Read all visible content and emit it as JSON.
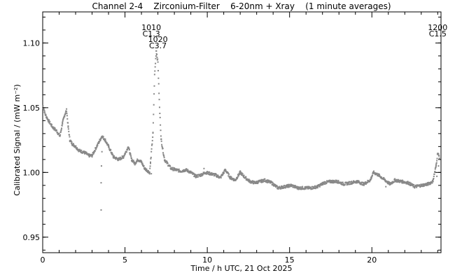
{
  "chart_data": {
    "type": "scatter",
    "title": "Channel 2-4    Zirconium-Filter    6-20nm + Xray    (1 minute averages)",
    "xlabel": "Time / h UTC, 21 Oct 2025",
    "ylabel": "Calibrated Signal / (mW m⁻²)",
    "xlim": [
      0,
      24.2
    ],
    "ylim": [
      0.938,
      1.124
    ],
    "x_ticks": [
      0,
      5,
      10,
      15,
      20
    ],
    "y_ticks": [
      0.95,
      1.0,
      1.05,
      1.1
    ],
    "y_tick_labels": [
      "0.95",
      "1.00",
      "1.05",
      "1.10"
    ],
    "marker_color": "#888888",
    "grid": false,
    "annotations": [
      {
        "time": "1010",
        "flare_class": "C1.3",
        "x": 6.6
      },
      {
        "time": "1020",
        "flare_class": "C3.7",
        "x": 7.0
      },
      {
        "time": "1200",
        "flare_class": "C1.5",
        "x": 24.0
      }
    ],
    "anchors": [
      [
        0.0,
        1.052
      ],
      [
        0.15,
        1.045
      ],
      [
        0.35,
        1.04
      ],
      [
        0.6,
        1.035
      ],
      [
        0.85,
        1.032
      ],
      [
        1.05,
        1.028
      ],
      [
        1.2,
        1.038
      ],
      [
        1.35,
        1.045
      ],
      [
        1.45,
        1.048
      ],
      [
        1.55,
        1.035
      ],
      [
        1.65,
        1.025
      ],
      [
        1.8,
        1.022
      ],
      [
        2.0,
        1.02
      ],
      [
        2.2,
        1.017
      ],
      [
        2.4,
        1.016
      ],
      [
        2.6,
        1.015
      ],
      [
        2.8,
        1.013
      ],
      [
        3.0,
        1.013
      ],
      [
        3.6,
        1.028
      ],
      [
        3.8,
        1.025
      ],
      [
        4.0,
        1.02
      ],
      [
        4.3,
        1.012
      ],
      [
        4.6,
        1.01
      ],
      [
        4.9,
        1.012
      ],
      [
        5.1,
        1.017
      ],
      [
        5.2,
        1.02
      ],
      [
        5.4,
        1.01
      ],
      [
        5.6,
        1.007
      ],
      [
        5.8,
        1.01
      ],
      [
        6.0,
        1.008
      ],
      [
        6.2,
        1.003
      ],
      [
        6.5,
        1.0
      ],
      [
        6.7,
        1.03
      ],
      [
        6.8,
        1.075
      ],
      [
        6.9,
        1.094
      ],
      [
        7.0,
        1.085
      ],
      [
        7.1,
        1.05
      ],
      [
        7.2,
        1.025
      ],
      [
        7.4,
        1.01
      ],
      [
        7.8,
        1.003
      ],
      [
        8.1,
        1.002
      ],
      [
        8.4,
        1.001
      ],
      [
        8.7,
        1.002
      ],
      [
        9.0,
        1.0
      ],
      [
        9.3,
        0.997
      ],
      [
        9.6,
        0.998
      ],
      [
        9.9,
        1.0
      ],
      [
        10.2,
        0.999
      ],
      [
        10.5,
        0.998
      ],
      [
        10.8,
        0.996
      ],
      [
        11.1,
        1.002
      ],
      [
        11.4,
        0.996
      ],
      [
        11.7,
        0.994
      ],
      [
        12.0,
        1.0
      ],
      [
        12.3,
        0.996
      ],
      [
        12.6,
        0.993
      ],
      [
        12.9,
        0.992
      ],
      [
        13.2,
        0.993
      ],
      [
        13.5,
        0.994
      ],
      [
        13.9,
        0.992
      ],
      [
        14.3,
        0.988
      ],
      [
        14.7,
        0.989
      ],
      [
        15.1,
        0.99
      ],
      [
        15.5,
        0.988
      ],
      [
        15.9,
        0.988
      ],
      [
        16.3,
        0.988
      ],
      [
        16.7,
        0.989
      ],
      [
        17.1,
        0.992
      ],
      [
        17.5,
        0.993
      ],
      [
        17.9,
        0.993
      ],
      [
        18.3,
        0.991
      ],
      [
        18.7,
        0.992
      ],
      [
        19.1,
        0.993
      ],
      [
        19.5,
        0.991
      ],
      [
        19.9,
        0.994
      ],
      [
        20.1,
        1.0
      ],
      [
        20.4,
        0.998
      ],
      [
        20.8,
        0.994
      ],
      [
        21.1,
        0.991
      ],
      [
        21.4,
        0.994
      ],
      [
        21.8,
        0.993
      ],
      [
        22.2,
        0.992
      ],
      [
        22.6,
        0.989
      ],
      [
        23.0,
        0.99
      ],
      [
        23.4,
        0.991
      ],
      [
        23.7,
        0.993
      ],
      [
        23.9,
        1.005
      ],
      [
        24.0,
        1.015
      ],
      [
        24.1,
        1.012
      ]
    ],
    "outliers": [
      [
        3.55,
        0.971
      ],
      [
        3.55,
        0.992
      ],
      [
        3.57,
        1.005
      ],
      [
        3.6,
        1.016
      ],
      [
        6.55,
        1.007
      ],
      [
        6.6,
        0.999
      ],
      [
        9.8,
        1.003
      ],
      [
        20.85,
        0.989
      ],
      [
        23.95,
        0.997
      ],
      [
        24.05,
        1.005
      ]
    ],
    "gap": [
      3.05,
      3.5
    ],
    "samples_per_hour": 60
  }
}
